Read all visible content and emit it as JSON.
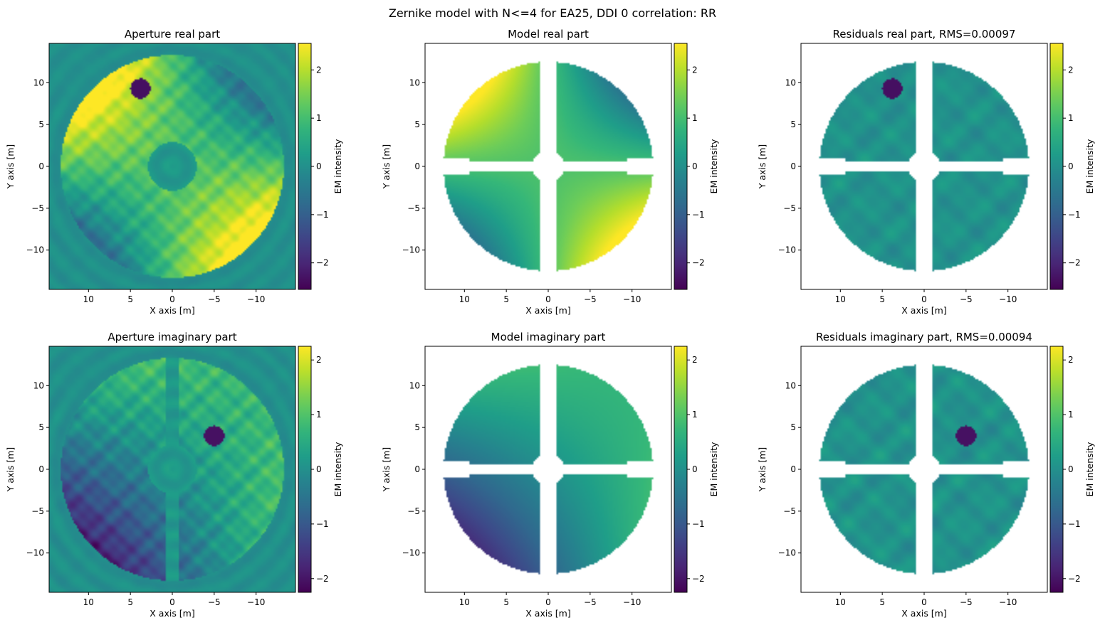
{
  "suptitle": "Zernike model with N<=4 for EA25, DDI 0 correlation: RR",
  "colormap": "viridis",
  "chart_data": [
    {
      "type": "heatmap",
      "id": "aperture-real",
      "title": "Aperture real part",
      "xlabel": "X axis [m]",
      "ylabel": "Y axis [m]",
      "xlim": [
        14.7,
        -14.7
      ],
      "ylim": [
        -14.7,
        14.7
      ],
      "xticks": [
        10,
        5,
        0,
        -5,
        -10
      ],
      "xtick_labels": [
        "10",
        "5",
        "0",
        "−5",
        "−10"
      ],
      "yticks": [
        10,
        5,
        0,
        -5,
        -10
      ],
      "ytick_labels": [
        "10",
        "5",
        "0",
        "−5",
        "−10"
      ],
      "colorbar": {
        "label": "EM intensity",
        "vmin": -2.55,
        "vmax": 2.55,
        "ticks": [
          2,
          1,
          0,
          -1,
          -2
        ],
        "tick_labels": [
          "2",
          "1",
          "0",
          "−1",
          "−2"
        ]
      },
      "field": "aperture",
      "component": "real",
      "dish_radius_m": 12.5,
      "hole_radius_m": 1.9,
      "dark_spot": [
        3.8,
        9.3
      ]
    },
    {
      "type": "heatmap",
      "id": "model-real",
      "title": "Model real part",
      "xlabel": "X axis [m]",
      "ylabel": "Y axis [m]",
      "xlim": [
        14.7,
        -14.7
      ],
      "ylim": [
        -14.7,
        14.7
      ],
      "xticks": [
        10,
        5,
        0,
        -5,
        -10
      ],
      "xtick_labels": [
        "10",
        "5",
        "0",
        "−5",
        "−10"
      ],
      "yticks": [
        10,
        5,
        0,
        -5,
        -10
      ],
      "ytick_labels": [
        "10",
        "5",
        "0",
        "−5",
        "−10"
      ],
      "colorbar": {
        "label": "EM intensity",
        "vmin": -2.55,
        "vmax": 2.55,
        "ticks": [
          2,
          1,
          0,
          -1,
          -2
        ],
        "tick_labels": [
          "2",
          "1",
          "0",
          "−1",
          "−2"
        ]
      },
      "field": "model",
      "component": "real",
      "dish_radius_m": 12.5,
      "hole_radius_m": 1.9
    },
    {
      "type": "heatmap",
      "id": "residuals-real",
      "title": "Residuals real part, RMS=0.00097",
      "xlabel": "X axis [m]",
      "ylabel": "Y axis [m]",
      "xlim": [
        14.7,
        -14.7
      ],
      "ylim": [
        -14.7,
        14.7
      ],
      "xticks": [
        10,
        5,
        0,
        -5,
        -10
      ],
      "xtick_labels": [
        "10",
        "5",
        "0",
        "−5",
        "−10"
      ],
      "yticks": [
        10,
        5,
        0,
        -5,
        -10
      ],
      "ytick_labels": [
        "10",
        "5",
        "0",
        "−5",
        "−10"
      ],
      "colorbar": {
        "label": "EM intensity",
        "vmin": -2.55,
        "vmax": 2.55,
        "ticks": [
          2,
          1,
          0,
          -1,
          -2
        ],
        "tick_labels": [
          "2",
          "1",
          "0",
          "−1",
          "−2"
        ]
      },
      "field": "residual",
      "component": "real",
      "dish_radius_m": 12.5,
      "hole_radius_m": 1.9,
      "dark_spot": [
        3.8,
        9.3
      ]
    },
    {
      "type": "heatmap",
      "id": "aperture-imag",
      "title": "Aperture imaginary part",
      "xlabel": "X axis [m]",
      "ylabel": "Y axis [m]",
      "xlim": [
        14.7,
        -14.7
      ],
      "ylim": [
        -14.7,
        14.7
      ],
      "xticks": [
        10,
        5,
        0,
        -5,
        -10
      ],
      "xtick_labels": [
        "10",
        "5",
        "0",
        "−5",
        "−10"
      ],
      "yticks": [
        10,
        5,
        0,
        -5,
        -10
      ],
      "ytick_labels": [
        "10",
        "5",
        "0",
        "−5",
        "−10"
      ],
      "colorbar": {
        "label": "EM intensity",
        "vmin": -2.25,
        "vmax": 2.25,
        "ticks": [
          2,
          1,
          0,
          -1,
          -2
        ],
        "tick_labels": [
          "2",
          "1",
          "0",
          "−1",
          "−2"
        ]
      },
      "field": "aperture",
      "component": "imag",
      "dish_radius_m": 12.5,
      "hole_radius_m": 1.9,
      "dark_spot": [
        -5.0,
        4.0
      ]
    },
    {
      "type": "heatmap",
      "id": "model-imag",
      "title": "Model imaginary part",
      "xlabel": "X axis [m]",
      "ylabel": "Y axis [m]",
      "xlim": [
        14.7,
        -14.7
      ],
      "ylim": [
        -14.7,
        14.7
      ],
      "xticks": [
        10,
        5,
        0,
        -5,
        -10
      ],
      "xtick_labels": [
        "10",
        "5",
        "0",
        "−5",
        "−10"
      ],
      "yticks": [
        10,
        5,
        0,
        -5,
        -10
      ],
      "ytick_labels": [
        "10",
        "5",
        "0",
        "−5",
        "−10"
      ],
      "colorbar": {
        "label": "EM intensity",
        "vmin": -2.25,
        "vmax": 2.25,
        "ticks": [
          2,
          1,
          0,
          -1,
          -2
        ],
        "tick_labels": [
          "2",
          "1",
          "0",
          "−1",
          "−2"
        ]
      },
      "field": "model",
      "component": "imag",
      "dish_radius_m": 12.5,
      "hole_radius_m": 1.9
    },
    {
      "type": "heatmap",
      "id": "residuals-imag",
      "title": "Residuals imaginary part, RMS=0.00094",
      "xlabel": "X axis [m]",
      "ylabel": "Y axis [m]",
      "xlim": [
        14.7,
        -14.7
      ],
      "ylim": [
        -14.7,
        14.7
      ],
      "xticks": [
        10,
        5,
        0,
        -5,
        -10
      ],
      "xtick_labels": [
        "10",
        "5",
        "0",
        "−5",
        "−10"
      ],
      "yticks": [
        10,
        5,
        0,
        -5,
        -10
      ],
      "ytick_labels": [
        "10",
        "5",
        "0",
        "−5",
        "−10"
      ],
      "colorbar": {
        "label": "EM intensity",
        "vmin": -2.25,
        "vmax": 2.25,
        "ticks": [
          2,
          1,
          0,
          -1,
          -2
        ],
        "tick_labels": [
          "2",
          "1",
          "0",
          "−1",
          "−2"
        ]
      },
      "field": "residual",
      "component": "imag",
      "dish_radius_m": 12.5,
      "hole_radius_m": 1.9,
      "dark_spot": [
        -5.0,
        4.0
      ]
    }
  ]
}
